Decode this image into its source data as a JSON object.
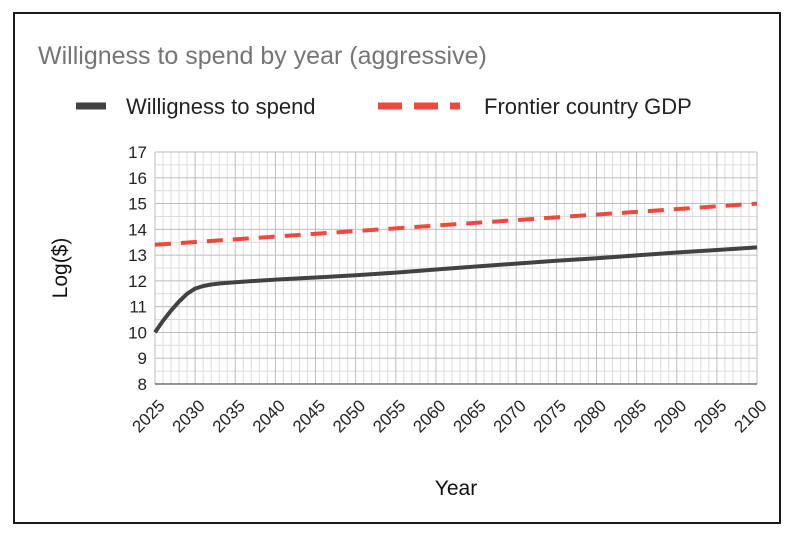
{
  "chart_data": {
    "type": "line",
    "title": "Willigness to spend by year (aggressive)",
    "xlabel": "Year",
    "ylabel": "Log($)",
    "grid": true,
    "legend_position": "top",
    "xlim": [
      2025,
      2100
    ],
    "ylim": [
      8,
      17
    ],
    "x_ticks": [
      2025,
      2030,
      2035,
      2040,
      2045,
      2050,
      2055,
      2060,
      2065,
      2070,
      2075,
      2080,
      2085,
      2090,
      2095,
      2100
    ],
    "y_ticks": [
      8,
      9,
      10,
      11,
      12,
      13,
      14,
      15,
      16,
      17
    ],
    "series": [
      {
        "name": "Willigness to spend",
        "color": "#424242",
        "style": "solid",
        "points": [
          [
            2025,
            10.0
          ],
          [
            2026,
            10.45
          ],
          [
            2027,
            10.85
          ],
          [
            2028,
            11.2
          ],
          [
            2029,
            11.5
          ],
          [
            2030,
            11.7
          ],
          [
            2031,
            11.8
          ],
          [
            2032,
            11.86
          ],
          [
            2033,
            11.9
          ],
          [
            2035,
            11.95
          ],
          [
            2040,
            12.05
          ],
          [
            2045,
            12.13
          ],
          [
            2050,
            12.22
          ],
          [
            2055,
            12.32
          ],
          [
            2060,
            12.44
          ],
          [
            2065,
            12.56
          ],
          [
            2070,
            12.67
          ],
          [
            2075,
            12.78
          ],
          [
            2080,
            12.88
          ],
          [
            2085,
            12.99
          ],
          [
            2090,
            13.1
          ],
          [
            2095,
            13.2
          ],
          [
            2100,
            13.3
          ]
        ]
      },
      {
        "name": "Frontier country GDP",
        "color": "#f2483b",
        "style": "dashed",
        "points": [
          [
            2025,
            13.4
          ],
          [
            2100,
            15.0
          ]
        ]
      }
    ]
  }
}
